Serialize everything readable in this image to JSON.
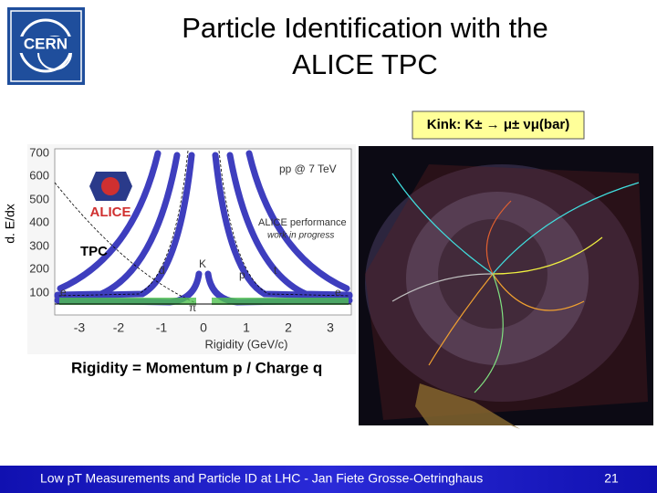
{
  "logo": {
    "text": "CERN"
  },
  "header": {
    "title_line1": "Particle Identification with the",
    "title_line2": "ALICE TPC"
  },
  "kink_label": "Kink: K± → μ± νμ(bar)",
  "plot": {
    "y_axis_label": "d. E/dx",
    "x_axis_label": "Rigidity (GeV/c)",
    "yticks": [
      "700",
      "600",
      "500",
      "400",
      "300",
      "200",
      "100"
    ],
    "xticks": [
      "-3",
      "-2",
      "-1",
      "0",
      "1",
      "2",
      "3"
    ],
    "energy_label": "pp @ 7 TeV",
    "experiment": "ALICE",
    "performance": "ALICE performance",
    "status": "work in progress",
    "detector": "TPC",
    "particles": [
      "e",
      "π",
      "K",
      "p",
      "d",
      "t",
      "e"
    ]
  },
  "rigidity_note": "Rigidity = Momentum p / Charge q",
  "footer": {
    "text": "Low pT Measurements and Particle ID at LHC - Jan Fiete Grosse-Oetringhaus",
    "page": "21"
  }
}
